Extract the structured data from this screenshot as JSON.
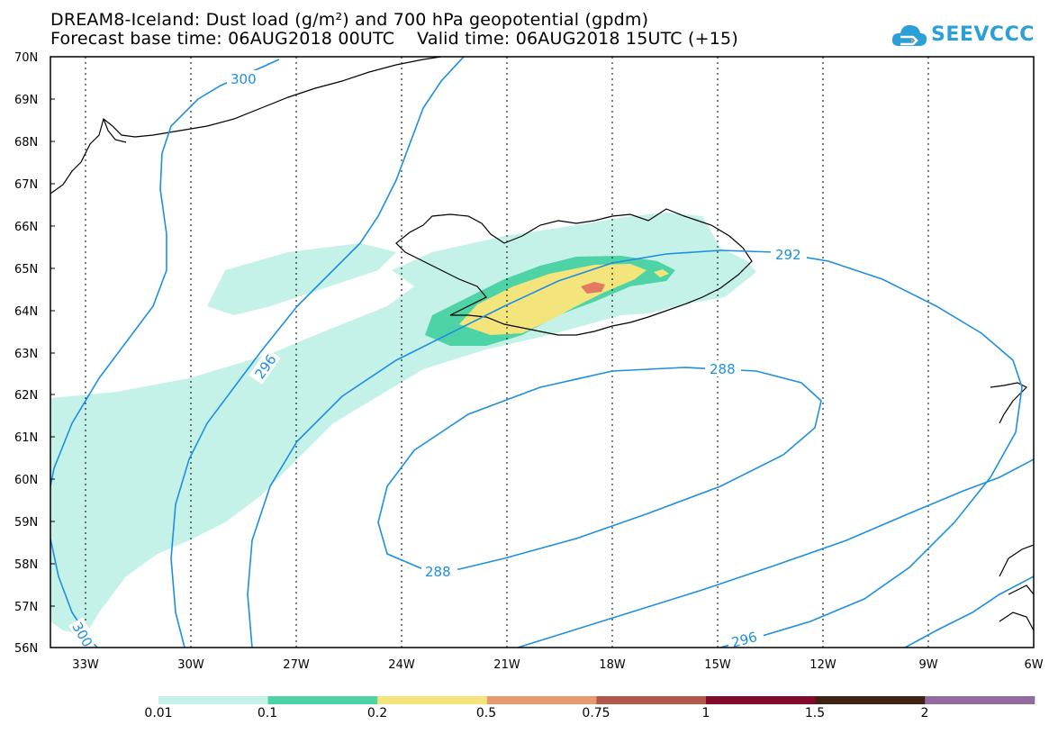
{
  "title_line1": "DREAM8-Iceland: Dust load (g/m²) and 700 hPa geopotential (gpdm)",
  "title_line2": "Forecast base time: 06AUG2018 00UTC    Valid time: 06AUG2018 15UTC (+15)",
  "logo_text": "SEEVCCC",
  "lat_labels": [
    "70N",
    "69N",
    "68N",
    "67N",
    "66N",
    "65N",
    "64N",
    "63N",
    "62N",
    "61N",
    "60N",
    "59N",
    "58N",
    "57N",
    "56N"
  ],
  "lon_labels": [
    "33W",
    "30W",
    "27W",
    "24W",
    "21W",
    "18W",
    "15W",
    "12W",
    "9W",
    "6W"
  ],
  "contour_labels": [
    "300",
    "296",
    "292",
    "288",
    "288",
    "296",
    "300"
  ],
  "colorbar": {
    "labels": [
      "0.01",
      "0.1",
      "0.2",
      "0.5",
      "0.75",
      "1",
      "1.5",
      "2"
    ],
    "colors": [
      "#c4f1e8",
      "#4ed3a6",
      "#f3e47c",
      "#e79a6f",
      "#b1574c",
      "#820b2d",
      "#3e2314",
      "#926b9e"
    ]
  },
  "colors": {
    "contour": "#1e8fe0",
    "coast": "#000000"
  }
}
